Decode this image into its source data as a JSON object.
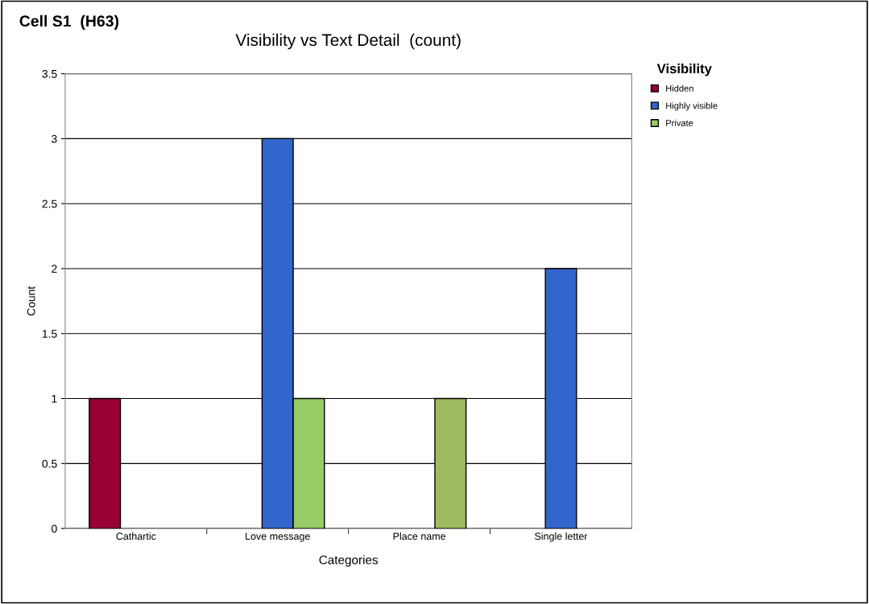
{
  "chart_data": {
    "type": "bar",
    "title": "Visibility vs Text Detail  (count)",
    "xlabel": "Categories",
    "ylabel": "Count",
    "annotations": [
      "Cell S1  (H63)"
    ],
    "categories": [
      "Cathartic",
      "Love message",
      "Place name",
      "Single letter"
    ],
    "series": [
      {
        "name": "Hidden",
        "color": "#990033",
        "values": [
          1,
          null,
          null,
          null
        ]
      },
      {
        "name": "Highly visible",
        "color": "#3366cc",
        "values": [
          null,
          3,
          null,
          2
        ]
      },
      {
        "name": "Private",
        "color": "#99cc66",
        "colors": [
          "#99cc66",
          "#99cc66",
          "#9fbb60",
          "#99cc66"
        ],
        "values": [
          null,
          1,
          1,
          null
        ]
      }
    ],
    "ylim": [
      0,
      3.5
    ],
    "yticks": [
      0,
      0.5,
      1,
      1.5,
      2,
      2.5,
      3,
      3.5
    ],
    "grid": "y",
    "legend": "top right",
    "legend_title": "Visibility"
  }
}
